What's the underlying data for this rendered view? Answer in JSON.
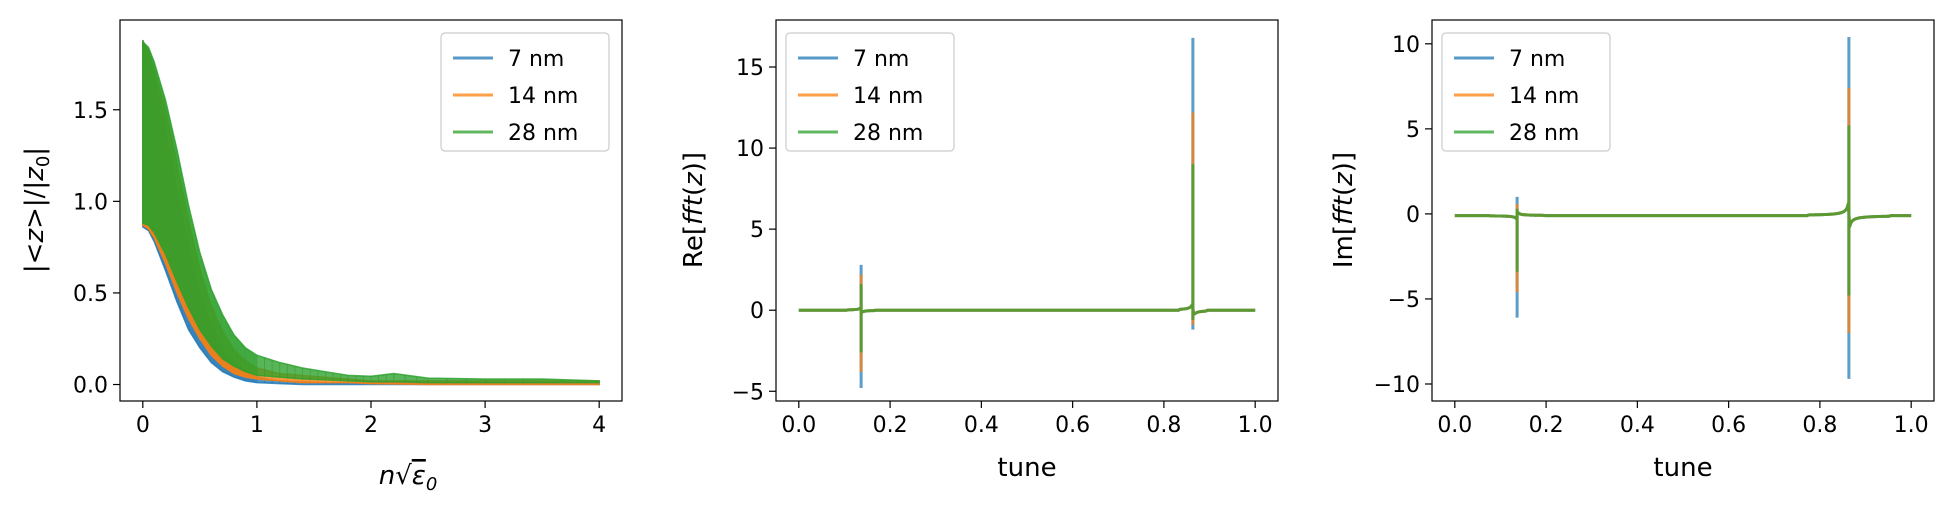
{
  "colors": {
    "s7": "#1f77b4",
    "s14": "#ff7f0e",
    "s28": "#2ca02c"
  },
  "legend_labels": [
    "7 nm",
    "14 nm",
    "28 nm"
  ],
  "chart_data": [
    {
      "type": "line",
      "title": "",
      "xlabel": "nsqrt(eps0)",
      "ylabel": "|<z>|/|z0|",
      "xlim": [
        -0.2,
        4.2
      ],
      "ylim": [
        -0.09,
        1.99
      ],
      "xticks": [
        0,
        1,
        2,
        3,
        4
      ],
      "yticks": [
        0.0,
        0.5,
        1.0,
        1.5
      ],
      "xtick_labels": [
        "0",
        "1",
        "2",
        "3",
        "4"
      ],
      "ytick_labels": [
        "0.0",
        "0.5",
        "1.0",
        "1.5"
      ],
      "grid": false,
      "legend": "upper right",
      "series": [
        {
          "name": "7 nm",
          "x": [
            0,
            0.05,
            0.1,
            0.2,
            0.3,
            0.4,
            0.5,
            0.6,
            0.7,
            0.8,
            0.9,
            1.0,
            1.2,
            1.4,
            1.6,
            1.8,
            2.0,
            2.5,
            3.0,
            3.5,
            4.0
          ],
          "y_upper": [
            1.88,
            1.8,
            1.68,
            1.4,
            1.05,
            0.75,
            0.5,
            0.32,
            0.2,
            0.12,
            0.07,
            0.04,
            0.02,
            0.015,
            0.01,
            0.01,
            0.01,
            0.01,
            0.01,
            0.01,
            0.01
          ],
          "y_lower": [
            0.86,
            0.84,
            0.78,
            0.62,
            0.45,
            0.3,
            0.2,
            0.12,
            0.07,
            0.04,
            0.02,
            0.01,
            0.005,
            0,
            0,
            0,
            0,
            0,
            0,
            0,
            0
          ]
        },
        {
          "name": "14 nm",
          "x": [
            0,
            0.05,
            0.1,
            0.2,
            0.3,
            0.4,
            0.5,
            0.6,
            0.7,
            0.8,
            0.9,
            1.0,
            1.2,
            1.4,
            1.6,
            1.8,
            2.0,
            2.5,
            3.0,
            3.5,
            4.0
          ],
          "y_upper": [
            1.87,
            1.82,
            1.72,
            1.5,
            1.2,
            0.9,
            0.63,
            0.43,
            0.29,
            0.19,
            0.13,
            0.09,
            0.06,
            0.05,
            0.04,
            0.03,
            0.02,
            0.02,
            0.02,
            0.02,
            0.02
          ],
          "y_lower": [
            0.87,
            0.85,
            0.8,
            0.66,
            0.5,
            0.36,
            0.25,
            0.16,
            0.1,
            0.06,
            0.04,
            0.03,
            0.02,
            0.01,
            0.01,
            0.01,
            0.005,
            0,
            0,
            0,
            0
          ]
        },
        {
          "name": "28 nm",
          "x": [
            0,
            0.05,
            0.1,
            0.2,
            0.3,
            0.4,
            0.5,
            0.6,
            0.7,
            0.8,
            0.9,
            1.0,
            1.2,
            1.4,
            1.6,
            1.8,
            2.0,
            2.2,
            2.5,
            3.0,
            3.5,
            4.0
          ],
          "y_upper": [
            1.87,
            1.84,
            1.76,
            1.55,
            1.28,
            0.98,
            0.72,
            0.52,
            0.38,
            0.27,
            0.2,
            0.16,
            0.12,
            0.09,
            0.07,
            0.05,
            0.045,
            0.06,
            0.035,
            0.03,
            0.03,
            0.02
          ],
          "y_lower": [
            0.88,
            0.87,
            0.83,
            0.71,
            0.56,
            0.42,
            0.3,
            0.21,
            0.14,
            0.1,
            0.07,
            0.05,
            0.04,
            0.03,
            0.025,
            0.02,
            0.015,
            0.015,
            0.01,
            0.01,
            0.01,
            0.01
          ]
        }
      ]
    },
    {
      "type": "line",
      "title": "",
      "xlabel": "tune",
      "ylabel": "Re[fft(z)]",
      "xlim": [
        -0.05,
        1.05
      ],
      "ylim": [
        -5.6,
        17.9
      ],
      "xticks": [
        0.0,
        0.2,
        0.4,
        0.6,
        0.8,
        1.0
      ],
      "yticks": [
        -5,
        0,
        5,
        10,
        15
      ],
      "xtick_labels": [
        "0.0",
        "0.2",
        "0.4",
        "0.6",
        "0.8",
        "1.0"
      ],
      "ytick_labels": [
        "−5",
        "0",
        "5",
        "10",
        "15"
      ],
      "grid": false,
      "legend": "upper left",
      "resonances": [
        0.1365,
        0.8635
      ],
      "series": [
        {
          "name": "7 nm",
          "peak1_max": 2.8,
          "peak1_min": -4.8,
          "peak2_max": 16.8,
          "peak2_min": -1.2
        },
        {
          "name": "14 nm",
          "peak1_max": 2.2,
          "peak1_min": -3.8,
          "peak2_max": 12.2,
          "peak2_min": -0.9
        },
        {
          "name": "28 nm",
          "peak1_max": 1.6,
          "peak1_min": -2.6,
          "peak2_max": 9.0,
          "peak2_min": -0.6
        }
      ]
    },
    {
      "type": "line",
      "title": "",
      "xlabel": "tune",
      "ylabel": "Im[fft(z)]",
      "xlim": [
        -0.05,
        1.05
      ],
      "ylim": [
        -11.0,
        11.4
      ],
      "xticks": [
        0.0,
        0.2,
        0.4,
        0.6,
        0.8,
        1.0
      ],
      "yticks": [
        -10,
        -5,
        0,
        5,
        10
      ],
      "xtick_labels": [
        "0.0",
        "0.2",
        "0.4",
        "0.6",
        "0.8",
        "1.0"
      ],
      "ytick_labels": [
        "−10",
        "−5",
        "0",
        "5",
        "10"
      ],
      "grid": false,
      "legend": "upper left",
      "resonances": [
        0.1365,
        0.8635
      ],
      "series": [
        {
          "name": "7 nm",
          "peak1_max": 1.0,
          "peak1_min": -6.1,
          "peak2_max": 10.4,
          "peak2_min": -9.7
        },
        {
          "name": "14 nm",
          "peak1_max": 0.6,
          "peak1_min": -4.6,
          "peak2_max": 7.4,
          "peak2_min": -7.0
        },
        {
          "name": "28 nm",
          "peak1_max": 0.3,
          "peak1_min": -3.4,
          "peak2_max": 5.2,
          "peak2_min": -4.8
        }
      ]
    }
  ]
}
